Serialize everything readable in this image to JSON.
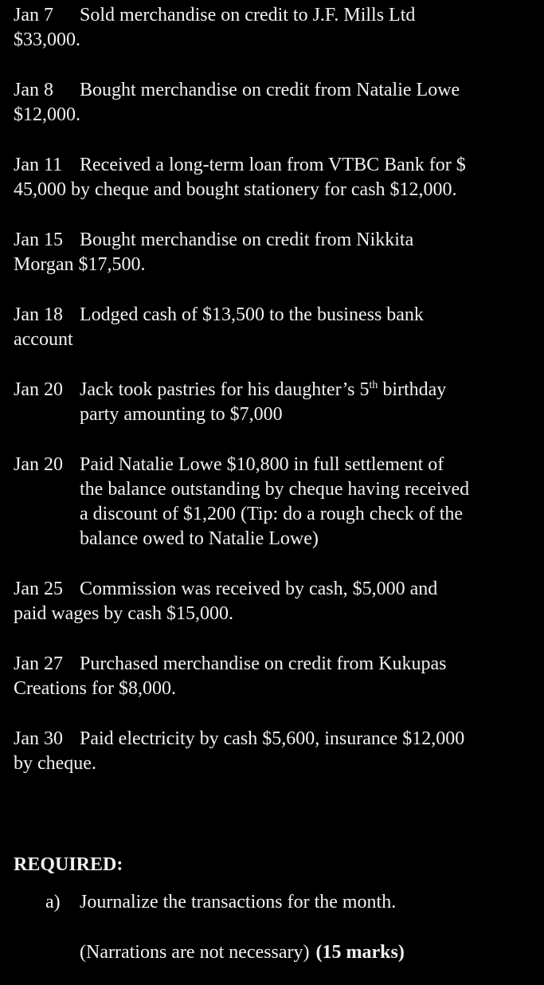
{
  "page": {
    "background_color": "#000000",
    "text_color": "#f2f2f2"
  },
  "entries": [
    {
      "date": "Jan 7",
      "lines": [
        "Sold merchandise on credit to J.F. Mills Ltd",
        "$33,000."
      ]
    },
    {
      "date": "Jan 8",
      "lines": [
        "Bought merchandise on credit from Natalie Lowe",
        "$12,000."
      ]
    },
    {
      "date": "Jan 11",
      "lines": [
        "Received a long-term loan from VTBC Bank for $",
        "45,000 by cheque and bought stationery for cash $12,000."
      ]
    },
    {
      "date": "Jan 15",
      "lines": [
        "Bought merchandise on credit from Nikkita",
        "Morgan $17,500."
      ]
    },
    {
      "date": "Jan 18",
      "lines": [
        "Lodged cash of $13,500 to the business bank",
        "account"
      ]
    },
    {
      "date": "Jan 20",
      "line1_pre": "Jack took pastries for his daughter’s 5",
      "sup": "th",
      "line1_post": " birthday",
      "line2": "party amounting to $7,000"
    },
    {
      "date": "Jan 20",
      "lines": [
        "Paid Natalie Lowe $10,800 in full settlement of",
        "the balance outstanding by cheque having received",
        "a discount of $1,200 (Tip: do a rough check of the",
        "balance owed to Natalie Lowe)"
      ]
    },
    {
      "date": "Jan 25",
      "lines": [
        "Commission was received by cash, $5,000 and",
        "paid wages by cash $15,000."
      ]
    },
    {
      "date": "Jan 27",
      "lines": [
        "Purchased merchandise on credit from Kukupas",
        "Creations for $8,000."
      ]
    },
    {
      "date": "Jan 30",
      "lines": [
        "Paid electricity by cash $5,600, insurance $12,000",
        "by cheque."
      ]
    }
  ],
  "required": {
    "heading": "REQUIRED:",
    "item_a_label": "a)",
    "item_a_text": "Journalize the transactions for the month.",
    "narration_note": "(Narrations are not necessary)",
    "marks": "(15 marks)"
  }
}
